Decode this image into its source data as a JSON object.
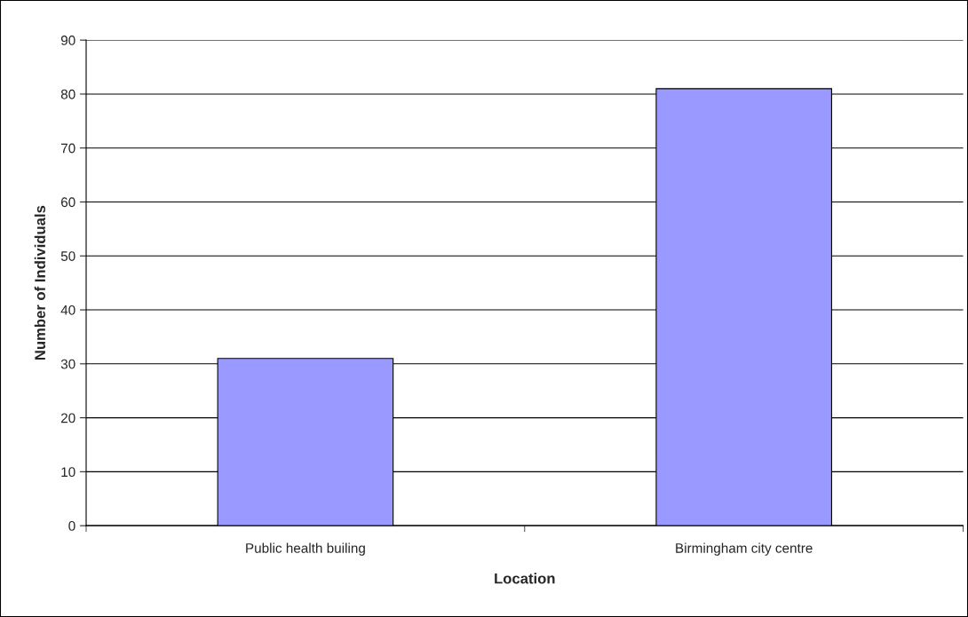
{
  "chart_data": {
    "type": "bar",
    "xlabel": "Location",
    "ylabel": "Number of Individuals",
    "categories": [
      "Public health builing",
      "Birmingham city centre"
    ],
    "values": [
      31,
      81
    ],
    "color": "#9999ff",
    "ylim": [
      0,
      90
    ],
    "yticks": [
      0,
      10,
      20,
      30,
      40,
      50,
      60,
      70,
      80,
      90
    ],
    "grid": "y",
    "legend": false
  }
}
